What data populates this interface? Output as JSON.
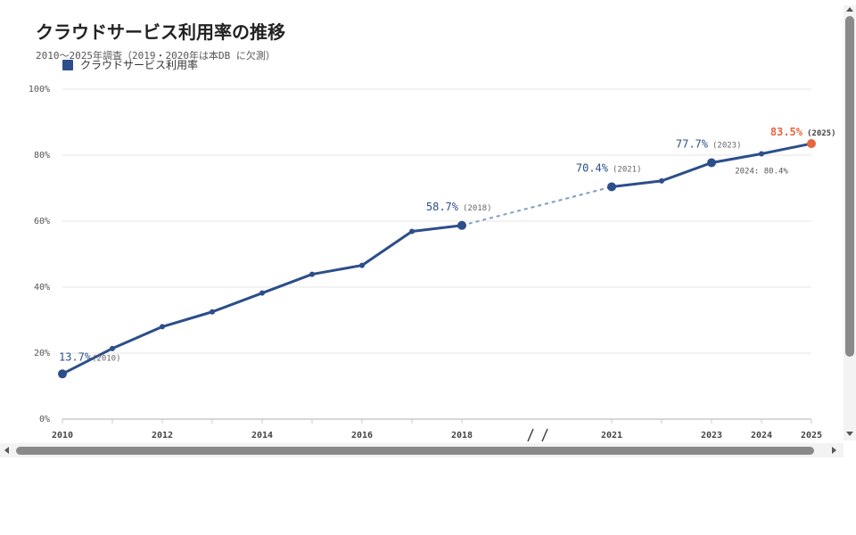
{
  "chart_data": {
    "type": "line",
    "title": "クラウドサービス利用率の推移",
    "subtitle": "2010〜2025年調査（2019・2020年は本DB に欠測）",
    "legend": "クラウドサービス利用率",
    "legend_placement": "top-left",
    "grid": true,
    "y_ticks": [
      "0%",
      "20%",
      "40%",
      "60%",
      "80%",
      "100%"
    ],
    "ylim": [
      0,
      100
    ],
    "x_ticks": [
      "2010",
      "2012",
      "2014",
      "2016",
      "2018",
      "2021",
      "2023",
      "2024",
      "2025"
    ],
    "axis_break_between": [
      "2018",
      "2021"
    ],
    "series": [
      {
        "name": "クラウドサービス利用率",
        "x": [
          2010,
          2011,
          2012,
          2013,
          2014,
          2015,
          2016,
          2017,
          2018,
          2021,
          2022,
          2023,
          2024,
          2025
        ],
        "y": [
          13.7,
          21.4,
          28.0,
          32.5,
          38.2,
          43.9,
          46.6,
          56.9,
          58.7,
          70.4,
          72.2,
          77.7,
          80.4,
          83.5
        ]
      }
    ],
    "annotations": [
      {
        "x": 2010,
        "value": "13.7%",
        "year": "(2010)"
      },
      {
        "x": 2018,
        "value": "58.7%",
        "year": "(2018)"
      },
      {
        "x": 2021,
        "value": "70.4%",
        "year": "(2021)"
      },
      {
        "x": 2023,
        "value": "77.7%",
        "year": "(2023)"
      },
      {
        "x": 2025,
        "value": "83.5%",
        "year": "(2025)",
        "highlight": true
      }
    ],
    "side_note": {
      "x": 2024,
      "text": "2024: 80.4%"
    },
    "colors": {
      "line": "#2c4e8a",
      "gap_line": "#7f9cc7",
      "highlight": "#e8663d",
      "grid": "#e6e6e6"
    }
  }
}
